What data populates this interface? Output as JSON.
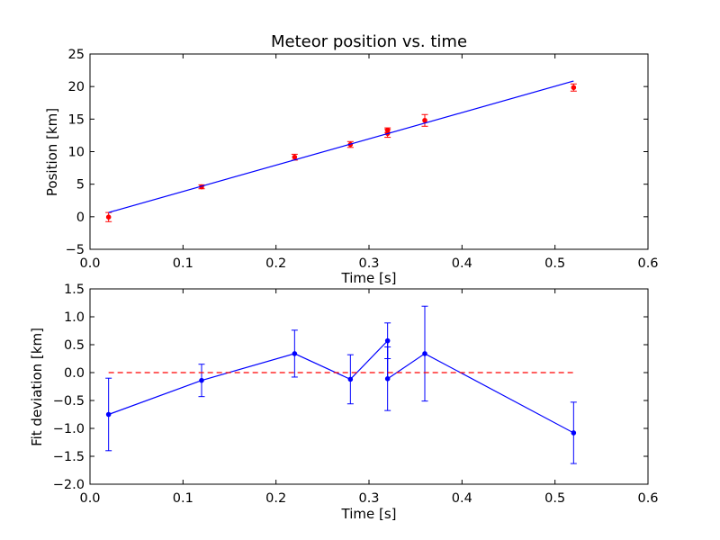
{
  "chart_data": [
    {
      "type": "scatter",
      "title": "Meteor position vs. time",
      "xlabel": "Time [s]",
      "ylabel": "Position [km]",
      "xlim": [
        0.0,
        0.6
      ],
      "ylim": [
        -5,
        25
      ],
      "xticks": [
        "0.0",
        "0.1",
        "0.2",
        "0.3",
        "0.4",
        "0.5",
        "0.6"
      ],
      "yticks": [
        "−5",
        "0",
        "5",
        "10",
        "15",
        "20",
        "25"
      ],
      "grid": false,
      "colors": {
        "points": "#ff0000",
        "fit": "#0000ff"
      },
      "series": [
        {
          "kind": "errorbar-points",
          "x": [
            0.02,
            0.12,
            0.22,
            0.28,
            0.32,
            0.32,
            0.36,
            0.52
          ],
          "y": [
            -0.05,
            4.6,
            9.15,
            11.1,
            13.3,
            12.8,
            14.8,
            19.85
          ],
          "yerr": [
            0.7,
            0.3,
            0.45,
            0.45,
            0.35,
            0.6,
            0.9,
            0.55
          ]
        },
        {
          "kind": "fit-line",
          "x": [
            0.02,
            0.52
          ],
          "y": [
            0.65,
            20.85
          ]
        }
      ]
    },
    {
      "type": "line",
      "title": "",
      "xlabel": "Time [s]",
      "ylabel": "Fit deviation [km]",
      "xlim": [
        0.0,
        0.6
      ],
      "ylim": [
        -2.0,
        1.5
      ],
      "xticks": [
        "0.0",
        "0.1",
        "0.2",
        "0.3",
        "0.4",
        "0.5",
        "0.6"
      ],
      "yticks": [
        "−2.0",
        "−1.5",
        "−1.0",
        "−0.5",
        "0.0",
        "0.5",
        "1.0",
        "1.5"
      ],
      "grid": false,
      "colors": {
        "deviation": "#0000ff",
        "zero_line": "#ff0000"
      },
      "series": [
        {
          "kind": "errorbar-line",
          "x": [
            0.02,
            0.12,
            0.22,
            0.28,
            0.32,
            0.32,
            0.36,
            0.52
          ],
          "y": [
            -0.75,
            -0.14,
            0.34,
            -0.12,
            0.57,
            -0.11,
            0.34,
            -1.08
          ],
          "yerr": [
            0.65,
            0.29,
            0.42,
            0.44,
            0.32,
            0.57,
            0.85,
            0.55
          ]
        },
        {
          "kind": "zero-reference-dashed",
          "x": [
            0.02,
            0.52
          ],
          "y": [
            0.0,
            0.0
          ]
        }
      ]
    }
  ]
}
